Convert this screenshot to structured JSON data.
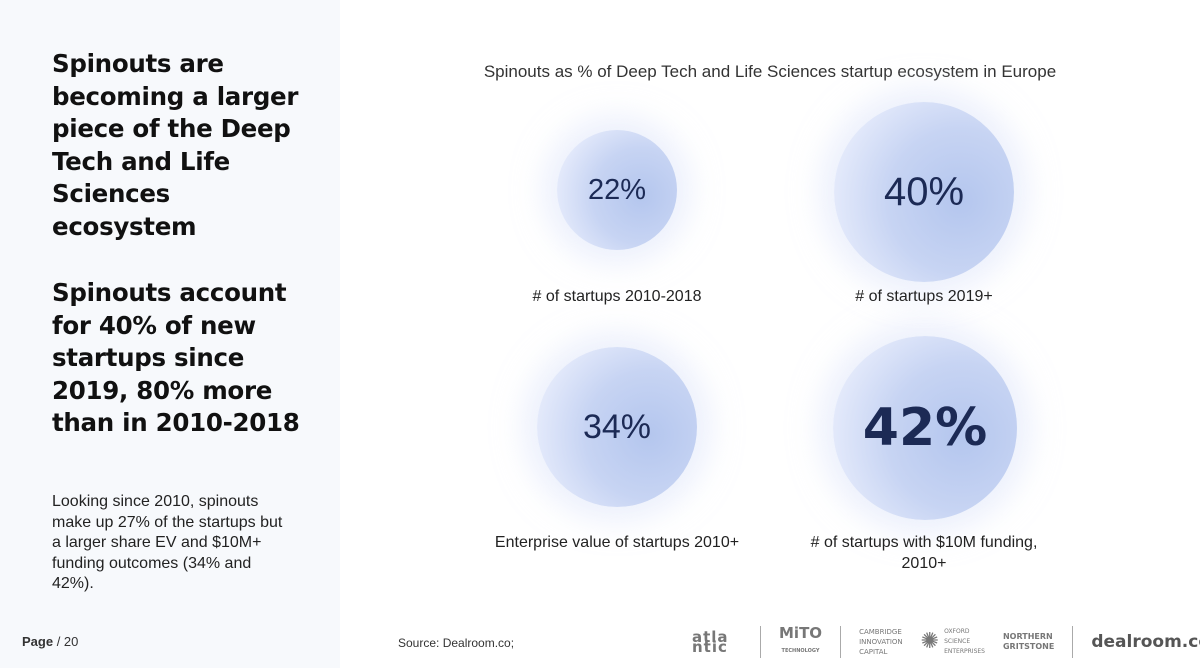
{
  "left_panel": {
    "heading1": "Spinouts are becoming a larger piece of the Deep Tech and Life Sciences ecosystem",
    "heading2": "Spinouts account for 40% of new startups since 2019, 80% more than in 2010-2018",
    "paragraph": "Looking since 2010, spinouts make up 27% of the startups but a larger share EV and $10M+ funding outcomes (34% and 42%).",
    "page_label": "Page",
    "page_number": "/ 20"
  },
  "chart_data": {
    "type": "bubble",
    "title": "Spinouts as % of Deep Tech and Life Sciences startup ecosystem in Europe",
    "items": [
      {
        "value": "22%",
        "percent": 22,
        "label": "# of startups 2010-2018"
      },
      {
        "value": "40%",
        "percent": 40,
        "label": "# of startups 2019+"
      },
      {
        "value": "34%",
        "percent": 34,
        "label": "Enterprise value of startups 2010+"
      },
      {
        "value": "42%",
        "percent": 42,
        "label": "# of startups with $10M funding, 2010+"
      }
    ],
    "colors": {
      "bubble": "#c7d4f3",
      "value_text": "#1c2a55"
    }
  },
  "footer": {
    "source": "Source:  Dealroom.co;",
    "logos": [
      "atlantic",
      "MITO TECHNOLOGY",
      "CAMBRIDGE INNOVATION CAPITAL",
      "OXFORD SCIENCE ENTERPRISES",
      "NORTHERN GRITSTONE",
      "dealroom.co"
    ]
  }
}
